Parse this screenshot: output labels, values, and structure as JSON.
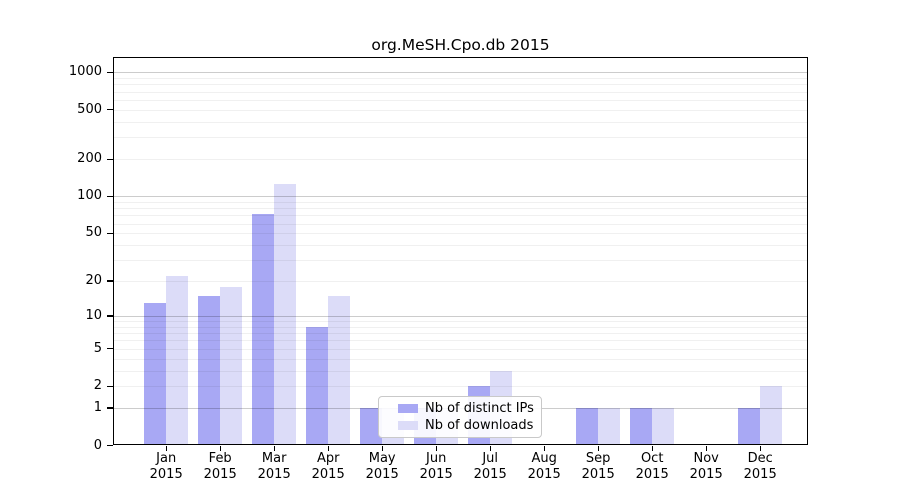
{
  "chart_data": {
    "type": "bar",
    "title": "org.MeSH.Cpo.db 2015",
    "categories": [
      "Jan",
      "Feb",
      "Mar",
      "Apr",
      "May",
      "Jun",
      "Jul",
      "Aug",
      "Sep",
      "Oct",
      "Nov",
      "Dec"
    ],
    "year": "2015",
    "series": [
      {
        "name": "Nb of distinct IPs",
        "color": "#a8a8f4",
        "values": [
          13,
          15,
          72,
          8,
          1,
          1,
          2,
          0,
          1,
          1,
          0,
          1
        ]
      },
      {
        "name": "Nb of downloads",
        "color": "#dcdcf8",
        "values": [
          22,
          18,
          125,
          15,
          1,
          1,
          3,
          0,
          1,
          1,
          0,
          2
        ]
      }
    ],
    "y_axis": {
      "scale": "log1p",
      "tick_labels": [
        1000,
        500,
        200,
        100,
        50,
        20,
        10,
        5,
        2,
        1,
        0
      ],
      "ylim": [
        0,
        1326
      ]
    },
    "xlabel": "",
    "ylabel": "",
    "grid": "horizontal, log minor + major lines, drawn over bars",
    "legend_position": "inside bottom-center"
  }
}
